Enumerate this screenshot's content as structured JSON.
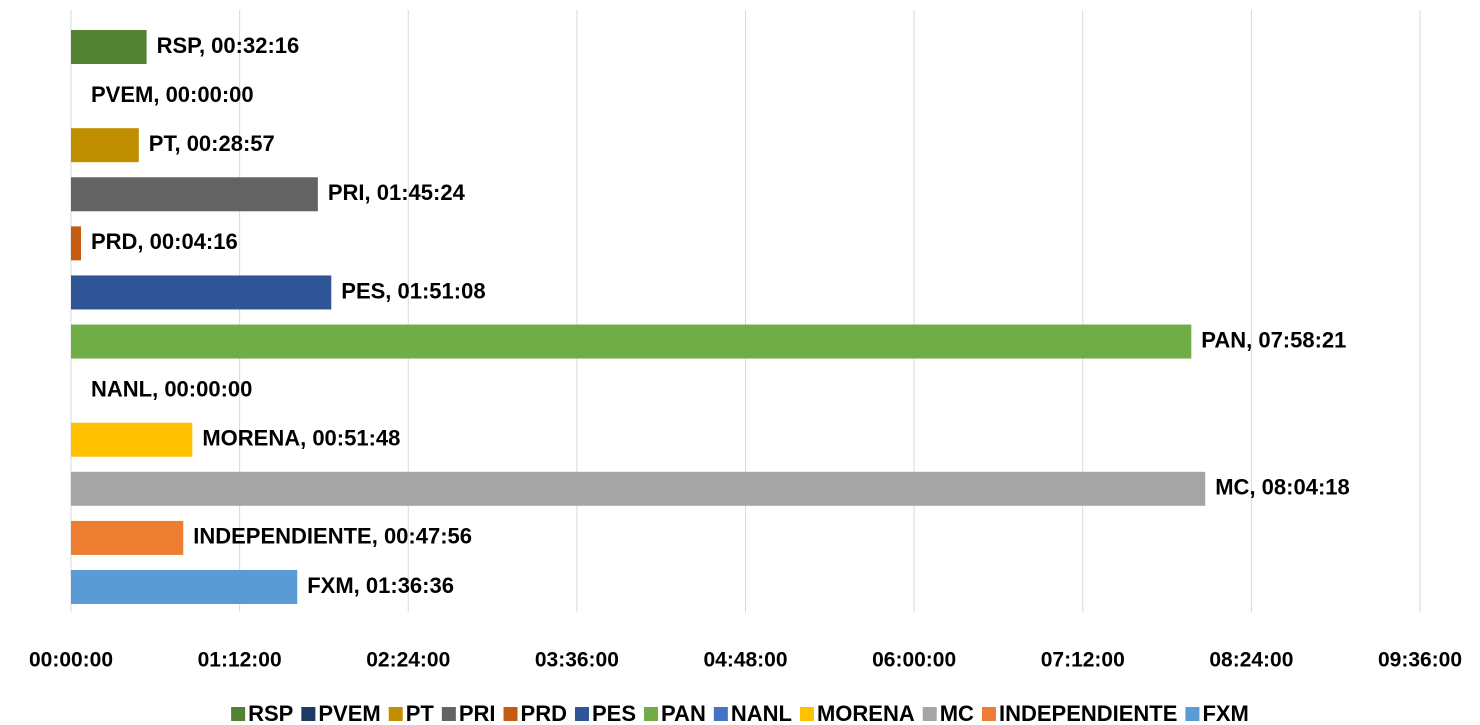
{
  "chart_data": {
    "type": "hbar",
    "categories": [
      "RSP",
      "PVEM",
      "PT",
      "PRI",
      "PRD",
      "PES",
      "PAN",
      "NANL",
      "MORENA",
      "MC",
      "INDEPENDIENTE",
      "FXM"
    ],
    "values": [
      1936,
      0,
      1737,
      6324,
      256,
      6668,
      28701,
      0,
      3108,
      29058,
      2876,
      5796
    ],
    "value_labels": [
      "RSP, 00:32:16",
      "PVEM, 00:00:00",
      "PT, 00:28:57",
      "PRI, 01:45:24",
      "PRD, 00:04:16",
      "PES, 01:51:08",
      "PAN, 07:58:21",
      "NANL, 00:00:00",
      "MORENA, 00:51:48",
      "MC, 08:04:18",
      "INDEPENDIENTE, 00:47:56",
      "FXM, 01:36:36"
    ],
    "colors": [
      "#548235",
      "#1f3864",
      "#bf8f00",
      "#636363",
      "#c55a11",
      "#2f5597",
      "#70ad47",
      "#4472c4",
      "#ffc000",
      "#a5a5a5",
      "#ed7d31",
      "#5b9bd5"
    ],
    "xlim": [
      0,
      34560
    ],
    "xticks": [
      {
        "value": 0,
        "label": "00:00:00"
      },
      {
        "value": 4320,
        "label": "01:12:00"
      },
      {
        "value": 8640,
        "label": "02:24:00"
      },
      {
        "value": 12960,
        "label": "03:36:00"
      },
      {
        "value": 17280,
        "label": "04:48:00"
      },
      {
        "value": 21600,
        "label": "06:00:00"
      },
      {
        "value": 25920,
        "label": "07:12:00"
      },
      {
        "value": 30240,
        "label": "08:24:00"
      },
      {
        "value": 34560,
        "label": "09:36:00"
      }
    ],
    "grid": true,
    "legend": "bottom"
  }
}
